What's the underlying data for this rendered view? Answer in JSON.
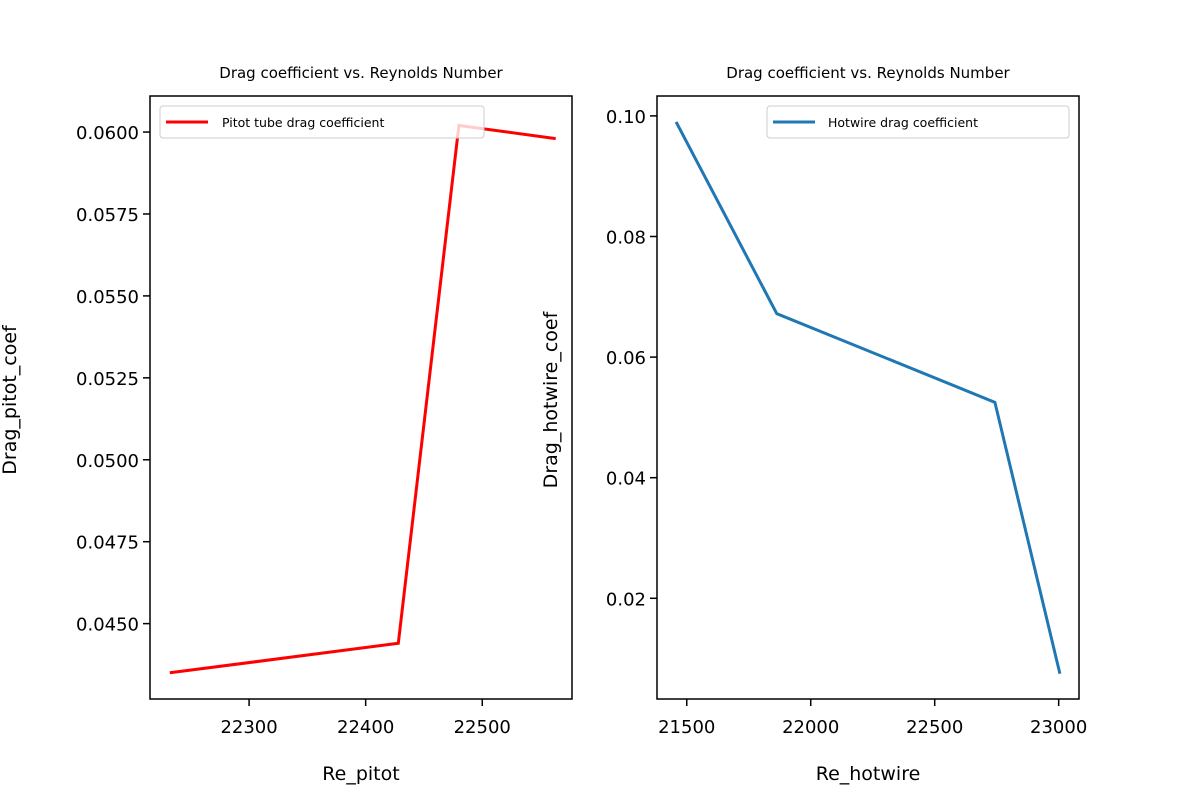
{
  "chart_data": [
    {
      "type": "line",
      "title": "Drag coefficient vs. Reynolds Number",
      "xlabel": "Re_pitot",
      "ylabel": "Drag_pitot_coef",
      "xlim": [
        22215,
        22577
      ],
      "ylim": [
        0.0427,
        0.0611
      ],
      "xticks": [
        22300,
        22400,
        22500
      ],
      "xtick_labels": [
        "22300",
        "22400",
        "22500"
      ],
      "yticks": [
        0.045,
        0.0475,
        0.05,
        0.0525,
        0.055,
        0.0575,
        0.06
      ],
      "ytick_labels": [
        "0.0450",
        "0.0475",
        "0.0500",
        "0.0525",
        "0.0550",
        "0.0575",
        "0.0600"
      ],
      "legend_position": "upper left",
      "grid": false,
      "series": [
        {
          "name": "Pitot tube drag coefficient",
          "color": "#ff0000",
          "x": [
            22232,
            22428,
            22480,
            22563
          ],
          "y": [
            0.0435,
            0.0444,
            0.0602,
            0.0598
          ]
        }
      ]
    },
    {
      "type": "line",
      "title": "Drag coefficient vs. Reynolds Number",
      "xlabel": "Re_hotwire",
      "ylabel": "Drag_hotwire_coef",
      "xlim": [
        21380,
        23082
      ],
      "ylim": [
        0.0033,
        0.1033
      ],
      "xticks": [
        21500,
        22000,
        22500,
        23000
      ],
      "xtick_labels": [
        "21500",
        "22000",
        "22500",
        "23000"
      ],
      "yticks": [
        0.02,
        0.04,
        0.06,
        0.08,
        0.1
      ],
      "ytick_labels": [
        "0.02",
        "0.04",
        "0.06",
        "0.08",
        "0.10"
      ],
      "legend_position": "upper right",
      "grid": false,
      "series": [
        {
          "name": "Hotwire drag coefficient",
          "color": "#1f77b4",
          "x": [
            21457,
            21863,
            22743,
            23005
          ],
          "y": [
            0.099,
            0.0672,
            0.0525,
            0.0075
          ]
        }
      ]
    }
  ]
}
